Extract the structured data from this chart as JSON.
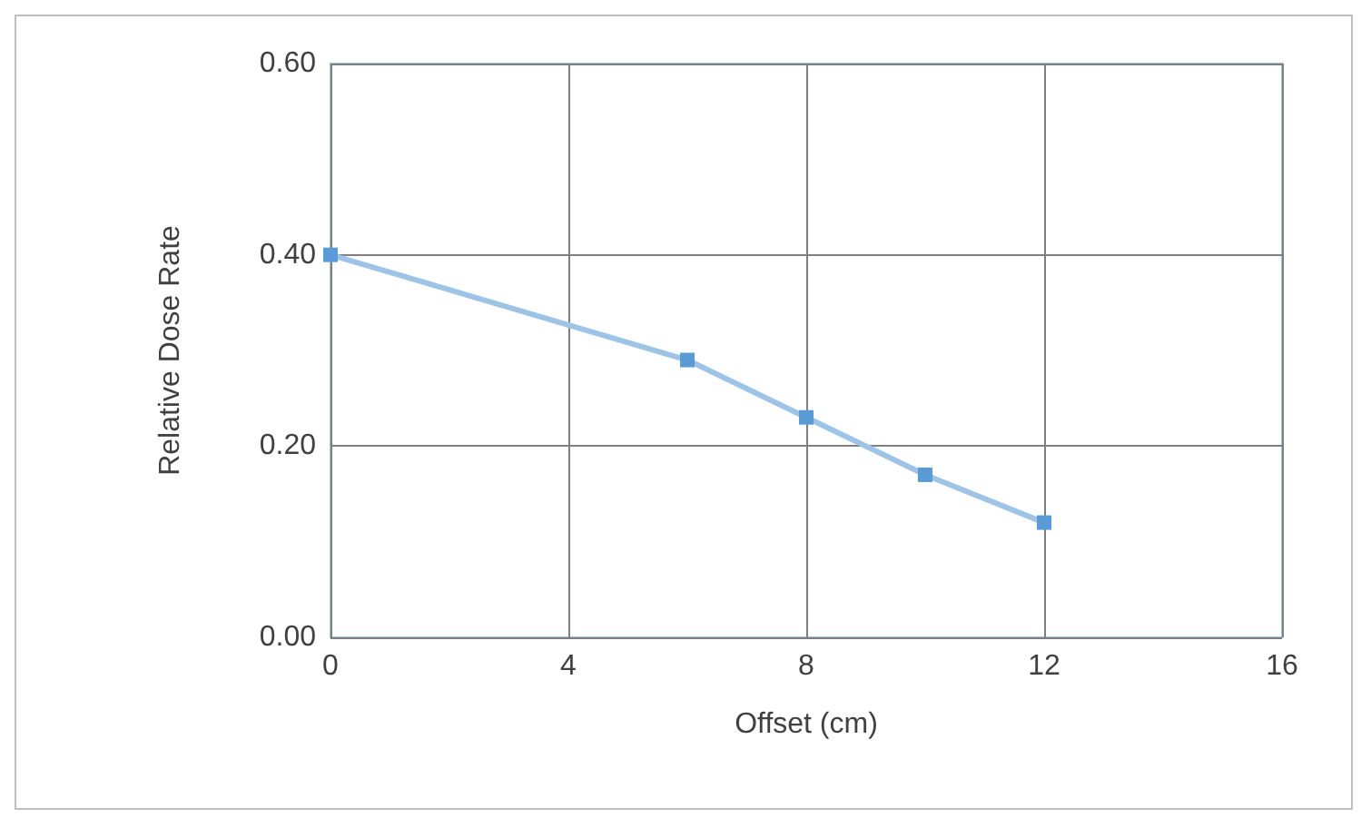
{
  "chart_data": {
    "type": "line",
    "xlabel": "Offset (cm)",
    "ylabel": "Relative Dose Rate",
    "x": [
      0,
      6,
      8,
      10,
      12
    ],
    "series": [
      {
        "color": "#5b9bd5",
        "values": [
          0.4,
          0.29,
          0.23,
          0.17,
          0.12
        ]
      }
    ],
    "xlim": [
      0,
      16
    ],
    "xticks": [
      0,
      4,
      8,
      12,
      16
    ],
    "ylim": [
      0,
      0.6
    ],
    "yticks": [
      {
        "value": 0,
        "label": "0.00"
      },
      {
        "value": 0.2,
        "label": "0.20"
      },
      {
        "value": 0.4,
        "label": "0.40"
      },
      {
        "value": 0.6,
        "label": "0.60"
      }
    ],
    "grid": true,
    "marker": "square",
    "line_style": "solid"
  }
}
